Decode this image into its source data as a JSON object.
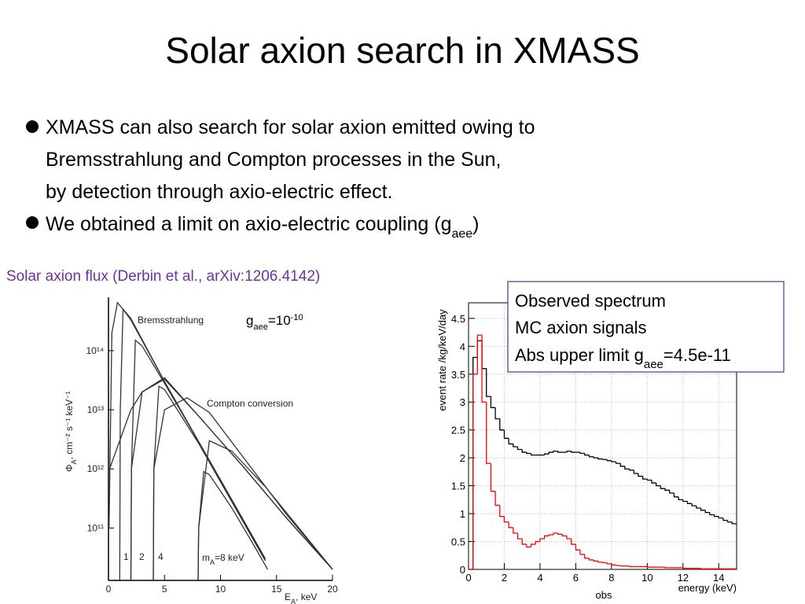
{
  "title": "Solar axion search in XMASS",
  "bullets": [
    {
      "lines": [
        "XMASS can also search for solar axion emitted owing to",
        "Bremsstrahlung and Compton processes in the Sun,",
        "by detection through axio-electric effect."
      ]
    },
    {
      "text": "We obtained a limit on axio-electric coupling (g",
      "sub": "aee",
      "after": ")"
    }
  ],
  "caption": "Solar axion flux (Derbin et al., arXiv:1206.4142)",
  "chart_data": [
    {
      "type": "line",
      "log_y": true,
      "color": "#333333",
      "xlim": [
        0,
        20
      ],
      "ylim": [
        13000000000.0,
        800000000000000.0
      ],
      "xticks": [
        0,
        5,
        10,
        15,
        20
      ],
      "yticks": [
        {
          "value": 100000000000.0,
          "label": "10¹¹"
        },
        {
          "value": 1000000000000.0,
          "label": "10¹²"
        },
        {
          "value": 10000000000000.0,
          "label": "10¹³"
        },
        {
          "value": 100000000000000.0,
          "label": "10¹⁴"
        }
      ],
      "x_label": {
        "main": "E",
        "sub": "A",
        "after": ", keV"
      },
      "y_label": {
        "main": "Φ",
        "sub": "A",
        "after": ", cm⁻² s⁻¹ keV⁻¹"
      },
      "annotations": {
        "bremsstrahlung": "Bremsstrahlung",
        "compton": "Compton conversion",
        "masses": [
          "1",
          "2",
          "4"
        ],
        "m8": {
          "main": "m",
          "sub": "A",
          "after": "=8 keV"
        },
        "coupling": {
          "main": "g",
          "sub": "aee",
          "after": "=10",
          "sup": "-10"
        }
      },
      "series": [
        {
          "x": [
            0.05,
            0.3,
            0.8,
            2,
            5,
            8,
            11,
            14
          ],
          "values": [
            100000000000.0,
            200000000000000.0,
            650000000000000.0,
            350000000000000.0,
            30000000000000.0,
            3000000000000.0,
            300000000000.0,
            30000000000.0
          ]
        },
        {
          "x": [
            1,
            1.05,
            1.3,
            2,
            5,
            8,
            11,
            14
          ],
          "values": [
            13000000000.0,
            10000000000000.0,
            500000000000000.0,
            330000000000000.0,
            30000000000000.0,
            3000000000000.0,
            300000000000.0,
            30000000000.0
          ]
        },
        {
          "x": [
            2,
            2.05,
            2.4,
            3,
            5,
            8,
            11,
            14
          ],
          "values": [
            13000000000.0,
            1000000000000.0,
            150000000000000.0,
            120000000000000.0,
            28000000000000.0,
            3000000000000.0,
            300000000000.0,
            30000000000.0
          ]
        },
        {
          "x": [
            4,
            4.05,
            4.5,
            5,
            8,
            11,
            14
          ],
          "values": [
            13000000000.0,
            1000000000000.0,
            25000000000000.0,
            22000000000000.0,
            2800000000000.0,
            280000000000.0,
            28000000000.0
          ]
        },
        {
          "x": [
            8,
            8.05,
            8.5,
            9,
            11,
            13,
            14.2
          ],
          "values": [
            13000000000.0,
            100000000000.0,
            900000000000.0,
            800000000000.0,
            220000000000.0,
            50000000000.0,
            20000000000.0
          ]
        },
        {
          "x": [
            0.1,
            1,
            2,
            3,
            5,
            8,
            12,
            16,
            20
          ],
          "values": [
            1000000000000.0,
            3000000000000.0,
            10000000000000.0,
            20000000000000.0,
            35000000000000.0,
            8000000000000.0,
            1100000000000.0,
            140000000000.0,
            20000000000.0
          ]
        },
        {
          "x": [
            2,
            2.05,
            3,
            5,
            8,
            12,
            16,
            20
          ],
          "values": [
            13000000000.0,
            1000000000000.0,
            20000000000000.0,
            33000000000000.0,
            8000000000000.0,
            1100000000000.0,
            140000000000.0,
            20000000000.0
          ]
        },
        {
          "x": [
            4,
            4.05,
            5,
            7,
            9,
            12,
            16,
            20
          ],
          "values": [
            13000000000.0,
            1000000000000.0,
            10000000000000.0,
            16000000000000.0,
            9000000000000.0,
            1600000000000.0,
            160000000000.0,
            20000000000.0
          ]
        },
        {
          "x": [
            8,
            8.05,
            9,
            11,
            14,
            17,
            20
          ],
          "values": [
            13000000000.0,
            100000000000.0,
            3000000000000.0,
            2000000000000.0,
            500000000000.0,
            100000000000.0,
            20000000000.0
          ]
        }
      ]
    },
    {
      "type": "histogram",
      "grid": true,
      "xlim": [
        0,
        15
      ],
      "ylim": [
        0,
        4.78
      ],
      "xticks": [
        0,
        2,
        4,
        6,
        8,
        10,
        12,
        14
      ],
      "yticks": [
        0,
        0.5,
        1,
        1.5,
        2,
        2.5,
        3,
        3.5,
        4,
        4.5
      ],
      "x_label": "energy (keV)",
      "y_label": "event rate /kg/keV/day",
      "stat_label": "obs",
      "limit_label": {
        "main": "Abs upper limit g",
        "sub": "aee",
        "after": "=4.5e-11"
      },
      "limit_color": "#ff0000",
      "bins": [
        0,
        0.25,
        0.5,
        0.75,
        1,
        1.25,
        1.5,
        1.75,
        2,
        2.25,
        2.5,
        2.75,
        3,
        3.25,
        3.5,
        3.75,
        4,
        4.25,
        4.5,
        4.75,
        5,
        5.25,
        5.5,
        5.75,
        6,
        6.25,
        6.5,
        6.75,
        7,
        7.25,
        7.5,
        7.75,
        8,
        8.25,
        8.5,
        8.75,
        9,
        9.25,
        9.5,
        9.75,
        10,
        10.25,
        10.5,
        10.75,
        11,
        11.25,
        11.5,
        11.75,
        12,
        12.25,
        12.5,
        12.75,
        13,
        13.25,
        13.5,
        13.75,
        14,
        14.25,
        14.5,
        14.75,
        15
      ],
      "series": [
        {
          "name": "Observed spectrum",
          "color": "#000000",
          "values": [
            0,
            3.8,
            4.1,
            3.6,
            3.1,
            2.9,
            2.7,
            2.5,
            2.35,
            2.25,
            2.2,
            2.15,
            2.1,
            2.08,
            2.05,
            2.05,
            2.05,
            2.07,
            2.1,
            2.12,
            2.1,
            2.1,
            2.12,
            2.1,
            2.1,
            2.08,
            2.05,
            2.02,
            2.0,
            1.98,
            1.97,
            1.95,
            1.93,
            1.9,
            1.85,
            1.8,
            1.78,
            1.72,
            1.67,
            1.62,
            1.6,
            1.55,
            1.5,
            1.45,
            1.42,
            1.37,
            1.3,
            1.25,
            1.22,
            1.18,
            1.14,
            1.1,
            1.06,
            1.02,
            0.98,
            0.95,
            0.92,
            0.88,
            0.85,
            0.82
          ]
        },
        {
          "name": "MC axion signals",
          "color": "#ff0000",
          "values": [
            0,
            3.5,
            4.2,
            3.0,
            1.9,
            1.4,
            1.15,
            0.95,
            0.85,
            0.75,
            0.65,
            0.55,
            0.45,
            0.4,
            0.45,
            0.5,
            0.55,
            0.6,
            0.62,
            0.65,
            0.63,
            0.6,
            0.55,
            0.45,
            0.35,
            0.27,
            0.2,
            0.17,
            0.15,
            0.13,
            0.12,
            0.1,
            0.08,
            0.07,
            0.06,
            0.06,
            0.05,
            0.05,
            0.05,
            0.05,
            0.04,
            0.04,
            0.04,
            0.04,
            0.03,
            0.03,
            0.03,
            0.03,
            0.02,
            0.02,
            0.02,
            0.02,
            0.01,
            0.01,
            0.01,
            0.01,
            0.01,
            0.01,
            0.01,
            0.01
          ]
        }
      ]
    }
  ]
}
